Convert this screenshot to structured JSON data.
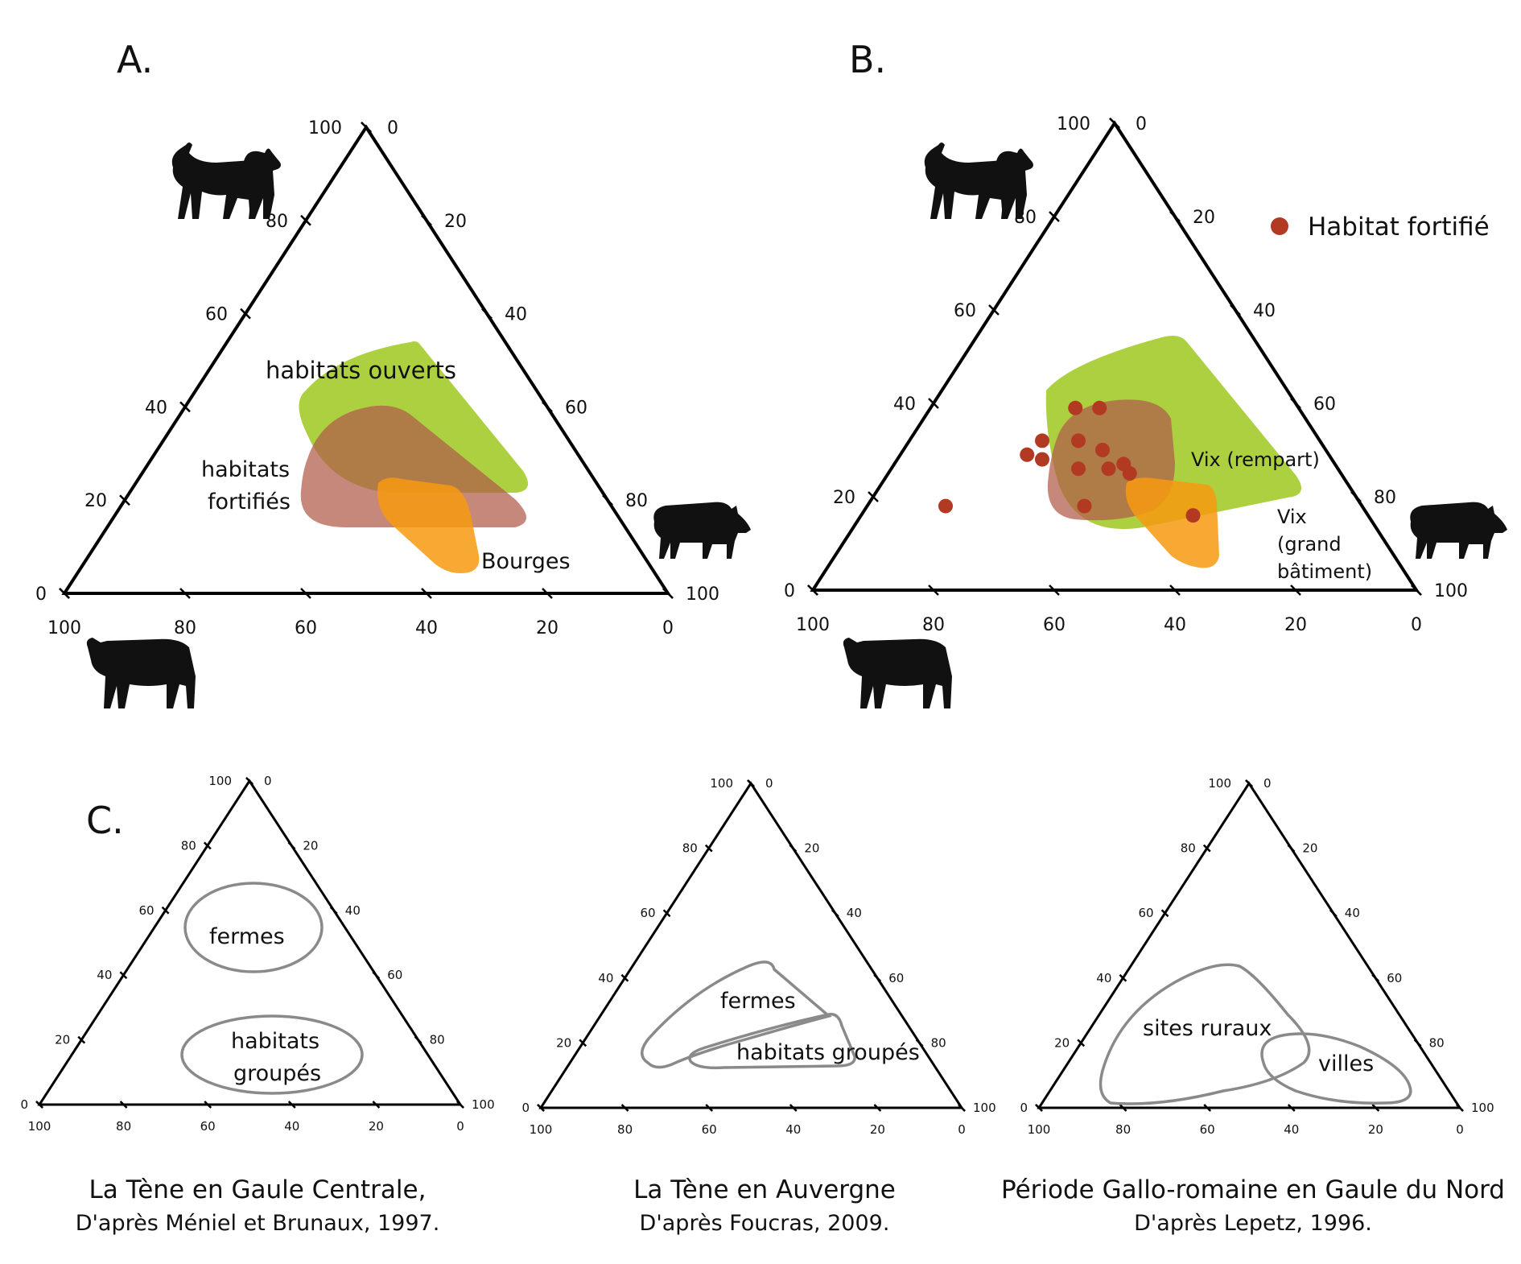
{
  "panels": {
    "A": {
      "letter": "A."
    },
    "B": {
      "letter": "B."
    },
    "C": {
      "letter": "C."
    }
  },
  "ticks": {
    "left_edge": [
      "100",
      "80",
      "60",
      "40",
      "20",
      "0"
    ],
    "right_edge": [
      "0",
      "20",
      "40",
      "60",
      "80",
      "100"
    ],
    "bottom_edge": [
      "100",
      "80",
      "60",
      "40",
      "20",
      "0"
    ]
  },
  "colors": {
    "habitats_ouverts": "#9dc81e",
    "habitats_fortifies": "#b05a48",
    "bourges": "#f79a10",
    "point": "#b23a22",
    "outline": "#8a8a8a"
  },
  "icons": {
    "top_vertex": "goat-sheep-icon",
    "right_vertex": "pig-icon",
    "left_vertex": "cattle-icon"
  },
  "chart_data": [
    {
      "type": "ternary-area",
      "panel": "A.",
      "axes": [
        "caprinés",
        "porc",
        "bœuf"
      ],
      "regions": [
        {
          "label": "habitats ouverts",
          "color": "#9dc81e",
          "polygon": [
            [
              47,
              15,
              38
            ],
            [
              54,
              10,
              36
            ],
            [
              54,
              18,
              28
            ],
            [
              38,
              37,
              25
            ],
            [
              28,
              42,
              30
            ],
            [
              34,
              26,
              40
            ]
          ]
        },
        {
          "label": "habitats fortifiés",
          "color": "#b05a48",
          "polygon": [
            [
              40,
              20,
              40
            ],
            [
              38,
              28,
              34
            ],
            [
              16,
              45,
              39
            ],
            [
              12,
              45,
              43
            ],
            [
              16,
              27,
              57
            ],
            [
              28,
              20,
              52
            ]
          ]
        },
        {
          "label": "Bourges",
          "color": "#f79a10",
          "polygon": [
            [
              24,
              32,
              44
            ],
            [
              22,
              40,
              38
            ],
            [
              8,
              41,
              51
            ],
            [
              3,
              44,
              53
            ],
            [
              12,
              32,
              56
            ],
            [
              20,
              26,
              54
            ]
          ]
        }
      ],
      "region_labels": [
        "habitats ouverts",
        "habitats fortifiés",
        "Bourges"
      ]
    },
    {
      "type": "ternary-scatter",
      "panel": "B.",
      "legend": "Habitat fortifié",
      "points": [
        [
          39,
          24,
          37
        ],
        [
          39,
          28,
          33
        ],
        [
          32,
          22,
          46
        ],
        [
          32,
          28,
          40
        ],
        [
          30,
          33,
          37
        ],
        [
          27,
          38,
          35
        ],
        [
          29,
          21,
          50
        ],
        [
          28,
          24,
          48
        ],
        [
          26,
          31,
          43
        ],
        [
          26,
          36,
          38
        ],
        [
          25,
          40,
          35
        ],
        [
          18,
          13,
          69
        ],
        [
          18,
          36,
          46
        ],
        [
          16,
          55,
          29
        ]
      ],
      "annotations": [
        "Vix (rempart)",
        "Vix",
        "(grand",
        "bâtiment)"
      ]
    },
    {
      "type": "ternary-outline",
      "panel": "C.",
      "title": "La Tène en Gaule Centrale,",
      "source": "D'après Méniel et Brunaux, 1997.",
      "regions": [
        {
          "label": "fermes",
          "center": [
            57,
            23,
            20
          ]
        },
        {
          "label_lines": [
            "habitats",
            "groupés"
          ],
          "center": [
            15,
            43,
            42
          ]
        }
      ]
    },
    {
      "type": "ternary-outline",
      "panel": "C.",
      "title": "La Tène en Auvergne",
      "source": "D'après Foucras, 2009.",
      "regions": [
        {
          "label": "fermes"
        },
        {
          "label": "habitats groupés"
        }
      ]
    },
    {
      "type": "ternary-outline",
      "panel": "C.",
      "title": "Période Gallo-romaine en Gaule du Nord",
      "source": "D'après Lepetz, 1996.",
      "regions": [
        {
          "label": "sites ruraux"
        },
        {
          "label": "villes"
        }
      ]
    }
  ]
}
